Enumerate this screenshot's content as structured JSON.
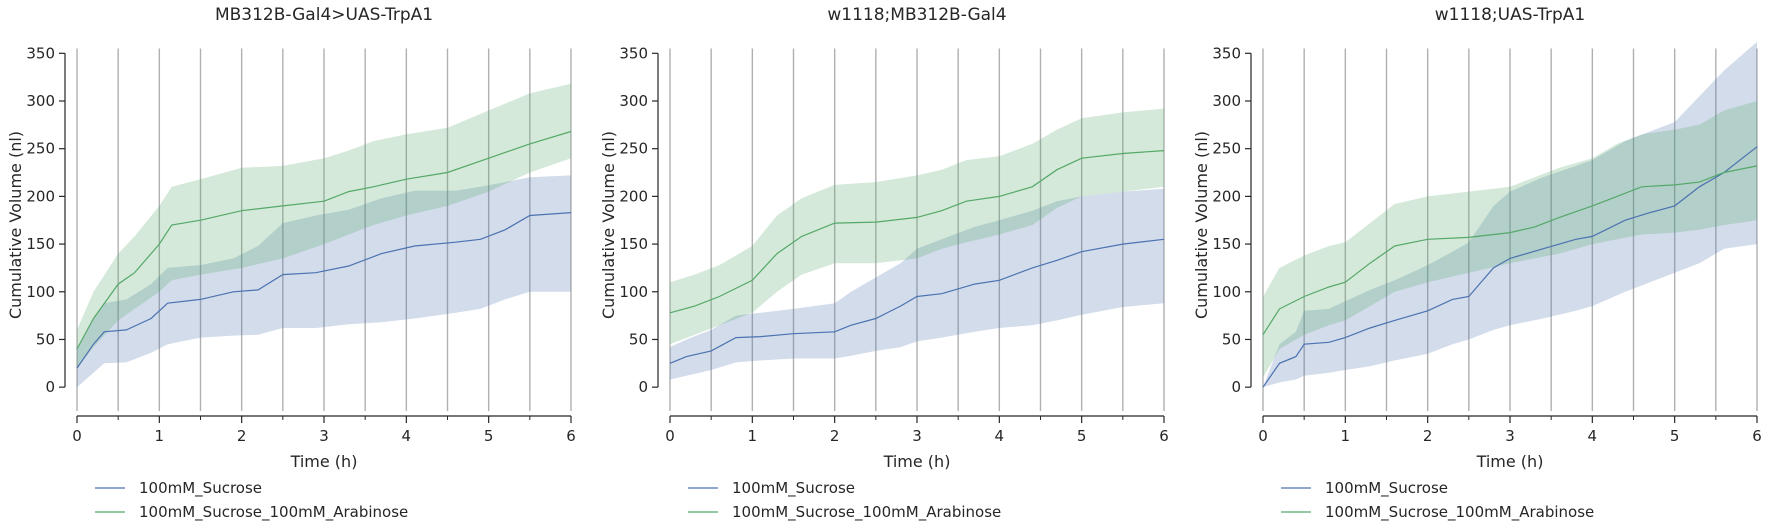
{
  "colors": {
    "sucrose": "#4c72b0",
    "arabinose": "#55a868",
    "vline": "#b0b0b0",
    "axis": "#262626"
  },
  "chart_data": [
    {
      "type": "line",
      "title": "MB312B-Gal4>UAS-TrpA1",
      "xlabel": "Time (h)",
      "ylabel": "Cumulative Volume (nl)",
      "xlim": [
        0,
        6
      ],
      "ylim": [
        -25,
        365
      ],
      "xticks": [
        "0",
        "1",
        "2",
        "3",
        "4",
        "5",
        "6"
      ],
      "yticks": [
        "0",
        "50",
        "100",
        "150",
        "200",
        "250",
        "300",
        "350"
      ],
      "vlines": [
        0,
        0.5,
        1,
        1.5,
        2,
        2.5,
        3,
        3.5,
        4,
        4.5,
        5,
        5.5,
        6
      ],
      "legend": "bottom-left",
      "series": [
        {
          "name": "100mM_Sucrose",
          "x": [
            0,
            0.2,
            0.33,
            0.6,
            0.9,
            1.1,
            1.5,
            1.9,
            2.2,
            2.5,
            2.9,
            3.3,
            3.7,
            4.1,
            4.6,
            4.9,
            5.2,
            5.5,
            6.0
          ],
          "y": [
            20,
            45,
            58,
            60,
            72,
            88,
            92,
            100,
            102,
            118,
            120,
            127,
            140,
            148,
            152,
            155,
            165,
            180,
            183
          ],
          "lower": [
            0,
            15,
            25,
            26,
            36,
            45,
            52,
            54,
            55,
            62,
            62,
            66,
            68,
            72,
            78,
            82,
            92,
            100,
            100
          ],
          "upper": [
            40,
            72,
            88,
            92,
            108,
            125,
            128,
            135,
            148,
            172,
            180,
            186,
            198,
            206,
            206,
            210,
            215,
            220,
            222
          ]
        },
        {
          "name": "100mM_Sucrose_100mM_Arabinose",
          "x": [
            0,
            0.2,
            0.5,
            0.7,
            1.0,
            1.15,
            1.5,
            2.0,
            2.5,
            3.0,
            3.3,
            3.6,
            4.0,
            4.5,
            5.0,
            5.5,
            6.0
          ],
          "y": [
            40,
            72,
            108,
            120,
            150,
            170,
            175,
            185,
            190,
            195,
            205,
            210,
            218,
            225,
            240,
            255,
            268
          ],
          "lower": [
            20,
            42,
            70,
            82,
            100,
            112,
            118,
            125,
            135,
            150,
            160,
            170,
            180,
            190,
            205,
            225,
            240
          ],
          "upper": [
            60,
            100,
            140,
            158,
            190,
            210,
            218,
            230,
            232,
            240,
            248,
            258,
            265,
            272,
            290,
            308,
            318
          ]
        }
      ]
    },
    {
      "type": "line",
      "title": "w1118;MB312B-Gal4",
      "xlabel": "Time (h)",
      "ylabel": "Cumulative Volume (nl)",
      "xlim": [
        0,
        6
      ],
      "ylim": [
        -25,
        365
      ],
      "xticks": [
        "0",
        "1",
        "2",
        "3",
        "4",
        "5",
        "6"
      ],
      "yticks": [
        "0",
        "50",
        "100",
        "150",
        "200",
        "250",
        "300",
        "350"
      ],
      "vlines": [
        0,
        0.5,
        1,
        1.5,
        2,
        2.5,
        3,
        3.5,
        4,
        4.5,
        5,
        5.5,
        6
      ],
      "legend": "bottom-left",
      "series": [
        {
          "name": "100mM_Sucrose",
          "x": [
            0,
            0.2,
            0.5,
            0.8,
            1.1,
            1.5,
            2.0,
            2.2,
            2.5,
            2.8,
            3.0,
            3.3,
            3.7,
            4.0,
            4.4,
            4.7,
            5.0,
            5.5,
            6.0
          ],
          "y": [
            25,
            32,
            38,
            52,
            53,
            56,
            58,
            65,
            72,
            85,
            95,
            98,
            108,
            112,
            125,
            133,
            142,
            150,
            155
          ],
          "lower": [
            8,
            12,
            18,
            26,
            28,
            30,
            30,
            33,
            38,
            42,
            48,
            52,
            58,
            62,
            65,
            70,
            76,
            84,
            88
          ],
          "upper": [
            42,
            50,
            60,
            75,
            78,
            82,
            88,
            100,
            115,
            130,
            145,
            155,
            168,
            175,
            185,
            195,
            200,
            205,
            208
          ]
        },
        {
          "name": "100mM_Sucrose_100mM_Arabinose",
          "x": [
            0,
            0.3,
            0.6,
            1.0,
            1.3,
            1.6,
            2.0,
            2.5,
            3.0,
            3.3,
            3.6,
            4.0,
            4.4,
            4.7,
            5.0,
            5.5,
            6.0
          ],
          "y": [
            78,
            85,
            95,
            112,
            140,
            158,
            172,
            173,
            178,
            185,
            195,
            200,
            210,
            228,
            240,
            245,
            248
          ],
          "lower": [
            45,
            55,
            65,
            78,
            100,
            118,
            130,
            130,
            135,
            145,
            152,
            160,
            170,
            188,
            200,
            205,
            210
          ],
          "upper": [
            110,
            118,
            128,
            148,
            180,
            198,
            212,
            215,
            222,
            228,
            238,
            242,
            255,
            270,
            282,
            288,
            292
          ]
        }
      ]
    },
    {
      "type": "line",
      "title": "w1118;UAS-TrpA1",
      "xlabel": "Time (h)",
      "ylabel": "Cumulative Volume (nl)",
      "xlim": [
        0,
        6
      ],
      "ylim": [
        -25,
        365
      ],
      "xticks": [
        "0",
        "1",
        "2",
        "3",
        "4",
        "5",
        "6"
      ],
      "yticks": [
        "0",
        "50",
        "100",
        "150",
        "200",
        "250",
        "300",
        "350"
      ],
      "vlines": [
        0,
        0.5,
        1,
        1.5,
        2,
        2.5,
        3,
        3.5,
        4,
        4.5,
        5,
        5.5,
        6
      ],
      "legend": "bottom-left",
      "series": [
        {
          "name": "100mM_Sucrose",
          "x": [
            0,
            0.2,
            0.4,
            0.5,
            0.8,
            1.0,
            1.3,
            1.6,
            2.0,
            2.3,
            2.5,
            2.8,
            3.0,
            3.4,
            3.8,
            4.0,
            4.4,
            4.7,
            5.0,
            5.3,
            5.6,
            6.0
          ],
          "y": [
            0,
            25,
            32,
            45,
            47,
            52,
            62,
            70,
            80,
            92,
            95,
            125,
            135,
            145,
            155,
            158,
            175,
            183,
            190,
            210,
            225,
            252
          ],
          "lower": [
            0,
            5,
            8,
            12,
            15,
            18,
            22,
            28,
            35,
            45,
            50,
            60,
            65,
            72,
            80,
            85,
            100,
            110,
            120,
            130,
            145,
            150
          ],
          "upper": [
            0,
            45,
            58,
            80,
            82,
            90,
            102,
            112,
            128,
            142,
            152,
            190,
            205,
            220,
            232,
            238,
            258,
            268,
            278,
            305,
            332,
            362
          ]
        },
        {
          "name": "100mM_Sucrose_100mM_Arabinose",
          "x": [
            0,
            0.2,
            0.5,
            0.8,
            1.0,
            1.3,
            1.6,
            2.0,
            2.5,
            3.0,
            3.3,
            3.6,
            4.0,
            4.3,
            4.6,
            5.0,
            5.3,
            5.6,
            6.0
          ],
          "y": [
            55,
            82,
            95,
            105,
            110,
            130,
            148,
            155,
            157,
            162,
            168,
            178,
            190,
            200,
            210,
            212,
            215,
            225,
            232
          ],
          "lower": [
            10,
            40,
            55,
            65,
            70,
            85,
            100,
            110,
            120,
            130,
            135,
            140,
            150,
            155,
            160,
            162,
            165,
            170,
            175
          ],
          "upper": [
            95,
            125,
            138,
            148,
            152,
            172,
            192,
            200,
            205,
            210,
            220,
            230,
            240,
            255,
            265,
            270,
            275,
            290,
            300
          ]
        }
      ]
    }
  ]
}
